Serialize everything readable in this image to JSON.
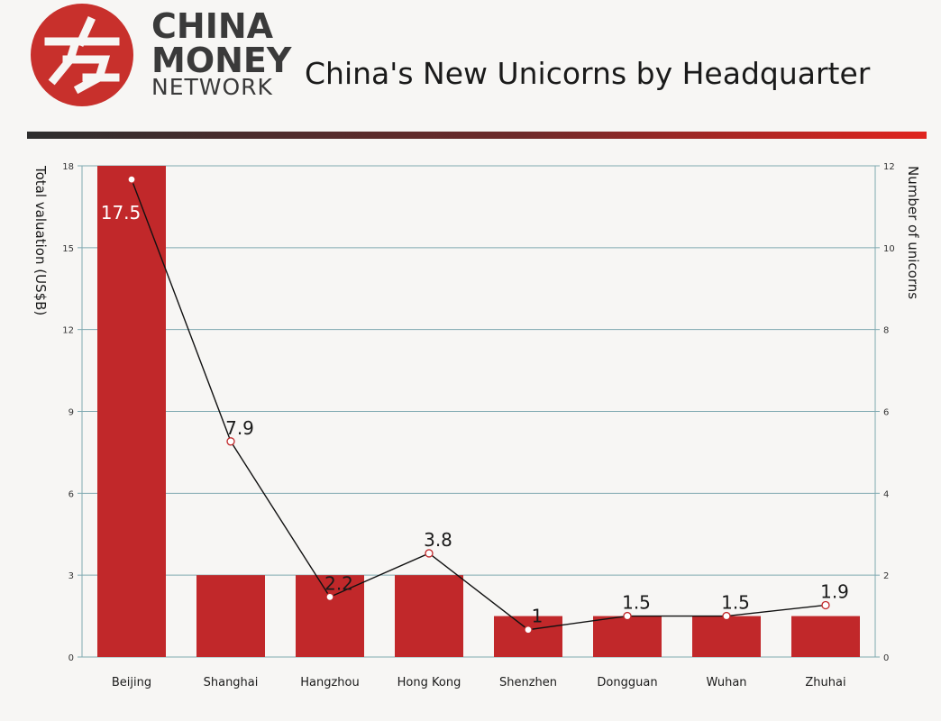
{
  "header": {
    "brand": [
      "CHINA",
      "MONEY",
      "NETWORK"
    ],
    "title": "China's New Unicorns by Headquarter"
  },
  "colors": {
    "bar": "#c1282a",
    "line": "#111111",
    "marker_fill": "#ffffff",
    "marker_stroke": "#c1282a",
    "grid": "#7fa9b1",
    "axis_text": "#333333"
  },
  "chart_data": {
    "type": "bar",
    "title": "China's New Unicorns by Headquarter",
    "categories": [
      "Beijing",
      "Shanghai",
      "Hangzhou",
      "Hong Kong",
      "Shenzhen",
      "Dongguan",
      "Wuhan",
      "Zhuhai"
    ],
    "ylabel": "Total valuation (US$B)",
    "y2label": "Number of unicorns",
    "ylim": [
      0,
      18
    ],
    "y2lim": [
      0,
      12
    ],
    "yticks": [
      0,
      3,
      6,
      9,
      12,
      15,
      18
    ],
    "y2ticks": [
      0,
      2,
      4,
      6,
      8,
      10,
      12
    ],
    "grid": true,
    "series": [
      {
        "type": "line",
        "axis": "left",
        "values": [
          17.5,
          7.9,
          2.2,
          3.8,
          1,
          1.5,
          1.5,
          1.9
        ],
        "data_labels": [
          "17.5",
          "7.9",
          "2.2",
          "3.8",
          "1",
          "1.5",
          "1.5",
          "1.9"
        ]
      },
      {
        "type": "bar",
        "axis": "right",
        "values": [
          12,
          2,
          2,
          2,
          1,
          1,
          1,
          1
        ]
      }
    ]
  }
}
